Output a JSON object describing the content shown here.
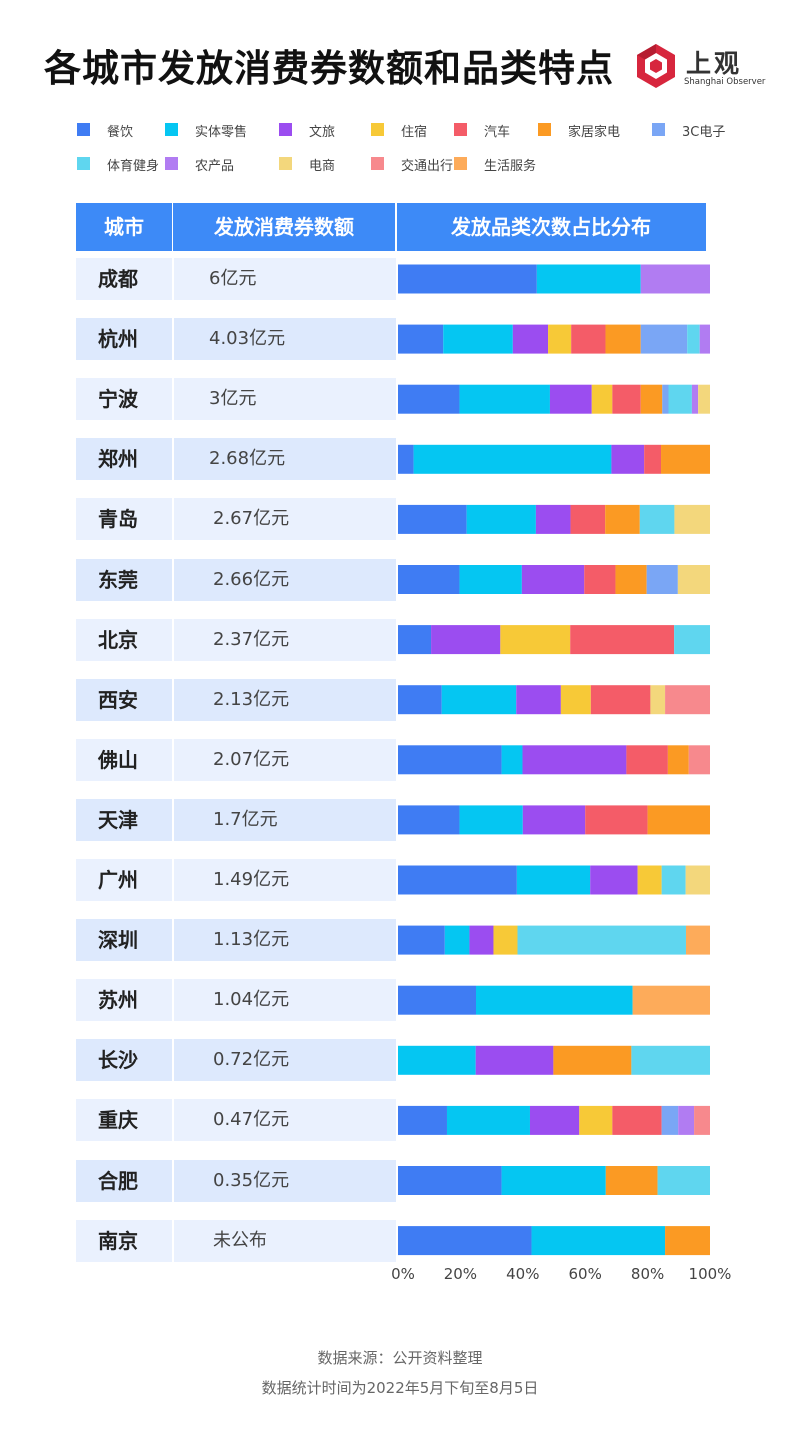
{
  "title": "各城市发放消费券数额和品类特点",
  "logo": {
    "main": "上观",
    "sub": "Shanghai Observer"
  },
  "colors": {
    "header_bg": "#3d8af7",
    "row_bg_a": "#eaf1fe",
    "row_bg_b": "#dde9fd"
  },
  "table": {
    "headers": {
      "city": "城市",
      "amount": "发放消费券数额",
      "distribution": "发放品类次数占比分布"
    }
  },
  "footer": {
    "source": "数据来源：公开资料整理",
    "period": "数据统计时间为2022年5月下旬至8月5日"
  },
  "chart_data": {
    "type": "bar",
    "orientation": "horizontal",
    "stacked": true,
    "title": "各城市发放消费券数额和品类特点",
    "x_ticks": [
      "0%",
      "20%",
      "40%",
      "60%",
      "80%",
      "100%"
    ],
    "xlim": [
      0,
      100
    ],
    "legend_position": "top",
    "series": [
      {
        "name": "餐饮",
        "color": "#3f7cf3"
      },
      {
        "name": "实体零售",
        "color": "#05c6f2"
      },
      {
        "name": "文旅",
        "color": "#9b4df0"
      },
      {
        "name": "住宿",
        "color": "#f7c937"
      },
      {
        "name": "汽车",
        "color": "#f45c68"
      },
      {
        "name": "家居家电",
        "color": "#fb9a23"
      },
      {
        "name": "3C电子",
        "color": "#7aa6f5"
      },
      {
        "name": "体育健身",
        "color": "#5fd6ef"
      },
      {
        "name": "农产品",
        "color": "#b17cf2"
      },
      {
        "name": "电商",
        "color": "#f3d77c"
      },
      {
        "name": "交通出行",
        "color": "#f7898d"
      },
      {
        "name": "生活服务",
        "color": "#fdab5a"
      }
    ],
    "rows": [
      {
        "city": "成都",
        "amount": "6亿元",
        "values": [
          44.5,
          33.3,
          0,
          0,
          0,
          0,
          0,
          0,
          22.2,
          0,
          0,
          0
        ]
      },
      {
        "city": "杭州",
        "amount": "4.03亿元",
        "values": [
          14.5,
          22.3,
          11.3,
          7.4,
          11.0,
          11.3,
          14.9,
          4.0,
          3.3,
          0,
          0,
          0
        ]
      },
      {
        "city": "宁波",
        "amount": "3亿元",
        "values": [
          19.7,
          29.0,
          13.4,
          6.6,
          9.1,
          6.9,
          2.0,
          7.5,
          2.0,
          3.8,
          0,
          0
        ]
      },
      {
        "city": "郑州",
        "amount": "2.68亿元",
        "values": [
          5.0,
          63.4,
          10.5,
          0,
          5.4,
          15.7,
          0,
          0,
          0,
          0,
          0,
          0
        ]
      },
      {
        "city": "青岛",
        "amount": "2.67亿元",
        "values": [
          22.0,
          22.2,
          11.1,
          0,
          11.1,
          11.1,
          0,
          11.1,
          0,
          11.4,
          0,
          0
        ]
      },
      {
        "city": "东莞",
        "amount": "2.66亿元",
        "values": [
          19.7,
          20.0,
          20.0,
          0,
          10.0,
          10.0,
          10.0,
          0,
          0,
          10.3,
          0,
          0
        ]
      },
      {
        "city": "北京",
        "amount": "2.37亿元",
        "values": [
          10.6,
          0,
          22.2,
          22.4,
          33.3,
          0,
          0,
          11.5,
          0,
          0,
          0,
          0
        ]
      },
      {
        "city": "西安",
        "amount": "2.13亿元",
        "values": [
          14.0,
          23.9,
          14.3,
          9.6,
          19.1,
          0,
          0,
          0,
          0,
          4.7,
          14.4,
          0
        ]
      },
      {
        "city": "佛山",
        "amount": "2.07亿元",
        "values": [
          33.2,
          6.7,
          33.3,
          0,
          13.3,
          6.7,
          0,
          0,
          0,
          0,
          6.8,
          0
        ]
      },
      {
        "city": "天津",
        "amount": "1.7亿元",
        "values": [
          19.7,
          20.3,
          20.0,
          0,
          20.0,
          20.0,
          0,
          0,
          0,
          0,
          0,
          0
        ]
      },
      {
        "city": "广州",
        "amount": "1.49亿元",
        "values": [
          38.1,
          23.5,
          15.2,
          7.7,
          0,
          0,
          0,
          7.7,
          0,
          7.8,
          0,
          0
        ]
      },
      {
        "city": "深圳",
        "amount": "1.13亿元",
        "values": [
          15.0,
          7.9,
          7.7,
          7.7,
          0,
          0,
          0,
          54.0,
          0,
          0,
          0,
          7.7
        ]
      },
      {
        "city": "苏州",
        "amount": "1.04亿元",
        "values": [
          25.0,
          50.2,
          0,
          0,
          0,
          0,
          0,
          0,
          0,
          0,
          0,
          24.8
        ]
      },
      {
        "city": "长沙",
        "amount": "0.72亿元",
        "values": [
          0,
          24.9,
          24.9,
          0,
          0,
          25.0,
          0,
          25.2,
          0,
          0,
          0,
          0
        ]
      },
      {
        "city": "重庆",
        "amount": "0.47亿元",
        "values": [
          15.7,
          26.6,
          15.8,
          10.6,
          15.8,
          0,
          5.3,
          0,
          5.1,
          0,
          5.1,
          0
        ]
      },
      {
        "city": "合肥",
        "amount": "0.35亿元",
        "values": [
          33.2,
          33.4,
          0,
          0,
          0,
          16.6,
          0,
          16.8,
          0,
          0,
          0,
          0
        ]
      },
      {
        "city": "南京",
        "amount": "未公布",
        "values": [
          42.8,
          42.8,
          0,
          0,
          0,
          14.4,
          0,
          0,
          0,
          0,
          0,
          0
        ]
      }
    ]
  }
}
